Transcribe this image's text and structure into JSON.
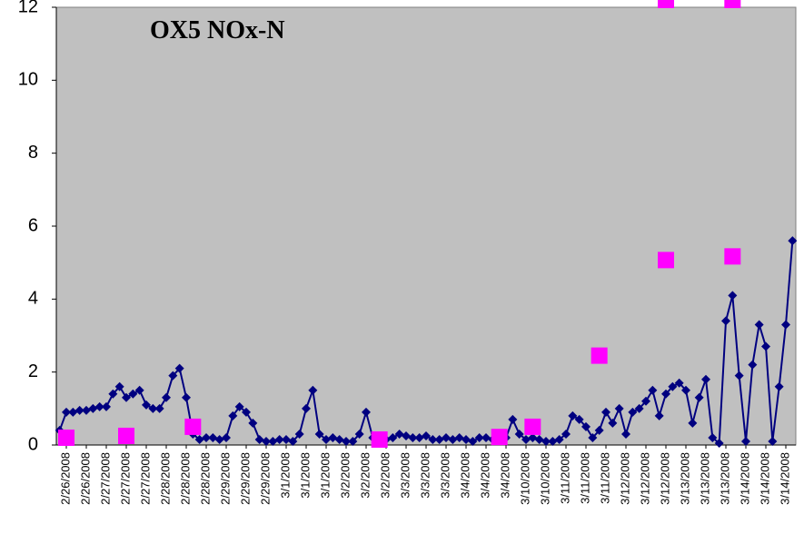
{
  "chart_data": {
    "type": "line",
    "title": "OX5 NOx-N",
    "categories": [
      null,
      "2/26/2008",
      null,
      null,
      "2/26/2008",
      null,
      null,
      "2/27/2008",
      null,
      null,
      "2/27/2008",
      null,
      null,
      "2/27/2008",
      null,
      null,
      "2/28/2008",
      null,
      null,
      "2/28/2008",
      null,
      null,
      "2/28/2008",
      null,
      null,
      "2/29/2008",
      null,
      null,
      "2/29/2008",
      null,
      null,
      "2/29/2008",
      null,
      null,
      "3/1/2008",
      null,
      null,
      "3/1/2008",
      null,
      null,
      "3/1/2008",
      null,
      null,
      "3/2/2008",
      null,
      null,
      "3/2/2008",
      null,
      null,
      "3/2/2008",
      null,
      null,
      "3/3/2008",
      null,
      null,
      "3/3/2008",
      null,
      null,
      "3/3/2008",
      null,
      null,
      "3/4/2008",
      null,
      null,
      "3/4/2008",
      null,
      null,
      "3/4/2008",
      null,
      null,
      "3/10/2008",
      null,
      null,
      "3/10/2008",
      null,
      null,
      "3/11/2008",
      null,
      null,
      "3/11/2008",
      null,
      null,
      "3/11/2008",
      null,
      null,
      "3/12/2008",
      null,
      null,
      "3/12/2008",
      null,
      null,
      "3/12/2008",
      null,
      null,
      "3/13/2008",
      null,
      null,
      "3/13/2008",
      null,
      null,
      "3/13/2008",
      null,
      null,
      "3/14/2008",
      null,
      null,
      "3/14/2008",
      null,
      null,
      "3/14/2008",
      null
    ],
    "series": [
      {
        "color": "#000080",
        "marker": "diamond",
        "line": true,
        "values": [
          0.4,
          0.9,
          0.9,
          0.95,
          0.95,
          1.0,
          1.05,
          1.05,
          1.4,
          1.6,
          1.3,
          1.4,
          1.5,
          1.1,
          1.0,
          1.0,
          1.3,
          1.9,
          2.1,
          1.3,
          0.3,
          0.15,
          0.2,
          0.2,
          0.15,
          0.2,
          0.8,
          1.05,
          0.9,
          0.6,
          0.15,
          0.1,
          0.1,
          0.15,
          0.15,
          0.1,
          0.3,
          1.0,
          1.5,
          0.3,
          0.15,
          0.2,
          0.15,
          0.1,
          0.1,
          0.3,
          0.9,
          0.2,
          0.1,
          0.15,
          0.2,
          0.3,
          0.25,
          0.2,
          0.2,
          0.25,
          0.15,
          0.15,
          0.2,
          0.15,
          0.2,
          0.15,
          0.1,
          0.2,
          0.2,
          0.15,
          0.2,
          0.2,
          0.7,
          0.3,
          0.15,
          0.2,
          0.15,
          0.1,
          0.1,
          0.15,
          0.3,
          0.8,
          0.7,
          0.5,
          0.2,
          0.4,
          0.9,
          0.6,
          1.0,
          0.3,
          0.9,
          1.0,
          1.2,
          1.5,
          0.8,
          1.4,
          1.6,
          1.7,
          1.5,
          0.6,
          1.3,
          1.8,
          0.2,
          0.05,
          3.4,
          4.1,
          1.9,
          0.1,
          2.2,
          3.3,
          2.7,
          0.1,
          1.6,
          3.3,
          5.6
        ]
      },
      {
        "color": "#ff00ff",
        "marker": "square",
        "line": false,
        "values": [
          null,
          0.2,
          null,
          null,
          null,
          null,
          null,
          null,
          null,
          null,
          0.25,
          null,
          null,
          null,
          null,
          null,
          null,
          null,
          null,
          null,
          0.5,
          null,
          null,
          null,
          null,
          null,
          null,
          null,
          null,
          null,
          null,
          null,
          null,
          null,
          null,
          null,
          null,
          null,
          null,
          null,
          null,
          null,
          null,
          null,
          null,
          null,
          null,
          null,
          0.15,
          null,
          null,
          null,
          null,
          null,
          null,
          null,
          null,
          null,
          null,
          null,
          null,
          null,
          null,
          null,
          null,
          null,
          0.22,
          null,
          null,
          null,
          null,
          0.5,
          null,
          null,
          null,
          null,
          null,
          null,
          null,
          null,
          null,
          2.45,
          null,
          null,
          null,
          null,
          null,
          null,
          null,
          null,
          null,
          5.07,
          null,
          null,
          null,
          null,
          null,
          null,
          null,
          null,
          null,
          5.17,
          null,
          null,
          null,
          null,
          null,
          null,
          null,
          null,
          null
        ]
      },
      {
        "color": "#ff00ff",
        "marker": "square",
        "line": false,
        "values": [
          null,
          null,
          null,
          null,
          null,
          null,
          null,
          null,
          null,
          null,
          null,
          null,
          null,
          null,
          null,
          null,
          null,
          null,
          null,
          null,
          null,
          null,
          null,
          null,
          null,
          null,
          null,
          null,
          null,
          null,
          null,
          null,
          null,
          null,
          null,
          null,
          null,
          null,
          null,
          null,
          null,
          null,
          null,
          null,
          null,
          null,
          null,
          null,
          null,
          null,
          null,
          null,
          null,
          null,
          null,
          null,
          null,
          null,
          null,
          null,
          null,
          null,
          null,
          null,
          null,
          null,
          null,
          null,
          null,
          null,
          null,
          null,
          null,
          null,
          null,
          null,
          null,
          null,
          null,
          null,
          null,
          null,
          null,
          null,
          null,
          null,
          null,
          null,
          null,
          null,
          null,
          12.2,
          null,
          null,
          null,
          null,
          null,
          null,
          null,
          null,
          null,
          12.2,
          null,
          null,
          null,
          null,
          null,
          null,
          null,
          null,
          null
        ]
      }
    ],
    "ylim": [
      0,
      12
    ],
    "yticks": [
      0,
      2,
      4,
      6,
      8,
      10,
      12
    ],
    "plot_background": "#c0c0c0"
  }
}
